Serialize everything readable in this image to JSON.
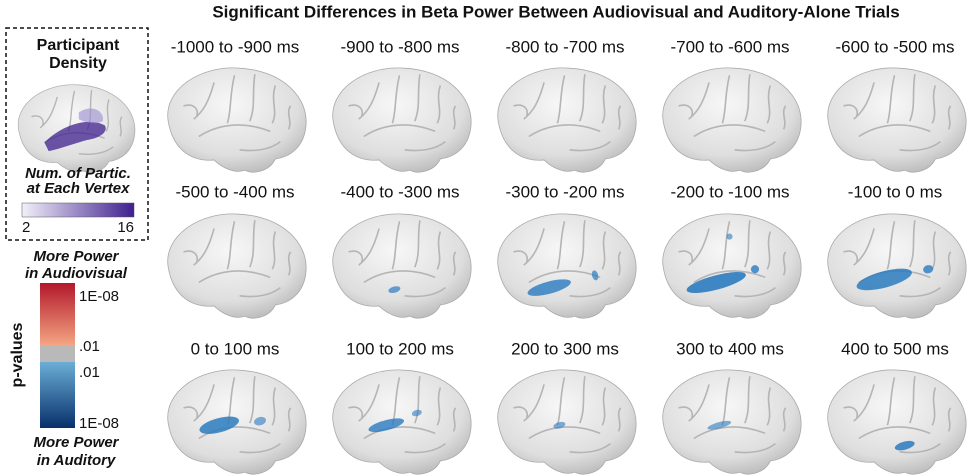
{
  "title": "Significant Differences in Beta Power Between Audiovisual and Auditory-Alone Trials",
  "density_legend": {
    "title": [
      "Participant",
      "Density"
    ],
    "caption": [
      "Num. of Partic.",
      "at Each Vertex"
    ],
    "min_label": 2,
    "max_label": 16
  },
  "pvalue_legend": {
    "top_caption": [
      "More Power",
      "in Audiovisual"
    ],
    "axis_label": "p-values",
    "labels": [
      "1E-08",
      ".01",
      ".01",
      "1E-08"
    ],
    "bottom_caption": [
      "More Power",
      "in Auditory"
    ]
  },
  "panels": [
    {
      "label": "-1000 to -900 ms"
    },
    {
      "label": "-900 to -800 ms"
    },
    {
      "label": "-800 to -700 ms"
    },
    {
      "label": "-700 to -600 ms"
    },
    {
      "label": "-600 to -500 ms"
    },
    {
      "label": "-500 to -400 ms"
    },
    {
      "label": "-400 to -300 ms"
    },
    {
      "label": "-300 to -200 ms"
    },
    {
      "label": "-200 to -100 ms"
    },
    {
      "label": "-100 to 0 ms"
    },
    {
      "label": "0 to 100 ms"
    },
    {
      "label": "100 to 200 ms"
    },
    {
      "label": "200 to 300 ms"
    },
    {
      "label": "300 to 400 ms"
    },
    {
      "label": "400 to 500 ms"
    }
  ]
}
